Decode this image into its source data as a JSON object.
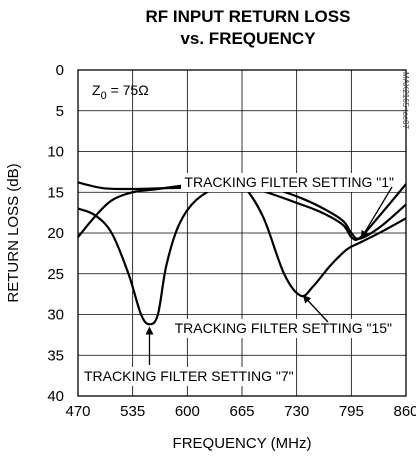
{
  "chart_data": {
    "type": "line",
    "title_line1": "RF INPUT RETURN LOSS",
    "title_line2": "vs. FREQUENCY",
    "xlabel": "FREQUENCY (MHz)",
    "ylabel": "RETURN LOSS (dB)",
    "xlim": [
      470,
      860
    ],
    "ylim": [
      0,
      40
    ],
    "y_inverted": true,
    "xticks": [
      470,
      535,
      600,
      665,
      730,
      795,
      860
    ],
    "yticks": [
      0,
      5,
      10,
      15,
      20,
      25,
      30,
      35,
      40
    ],
    "grid": true,
    "z0_prefix": "Z",
    "z0_sub": "0",
    "z0_suffix": " = 75Ω",
    "side_note": "MAX2165 toc07",
    "series": [
      {
        "name": "TRACKING FILTER SETTING \"1\"",
        "points": [
          [
            470,
            13.8
          ],
          [
            500,
            14.5
          ],
          [
            535,
            14.6
          ],
          [
            570,
            14.5
          ],
          [
            600,
            14.4
          ],
          [
            640,
            13.8
          ],
          [
            665,
            14
          ],
          [
            700,
            15.2
          ],
          [
            730,
            16.3
          ],
          [
            760,
            17.5
          ],
          [
            785,
            19
          ],
          [
            795,
            20.5
          ],
          [
            805,
            20.6
          ],
          [
            830,
            17.7
          ],
          [
            860,
            14
          ]
        ]
      },
      {
        "name": "TRACKING FILTER SETTING \"7\"",
        "points": [
          [
            470,
            17
          ],
          [
            490,
            17.8
          ],
          [
            510,
            20
          ],
          [
            530,
            25
          ],
          [
            545,
            30
          ],
          [
            555,
            31.2
          ],
          [
            565,
            30
          ],
          [
            575,
            24
          ],
          [
            590,
            19
          ],
          [
            610,
            16
          ],
          [
            640,
            14.2
          ],
          [
            665,
            13.9
          ],
          [
            700,
            14.5
          ],
          [
            730,
            15.5
          ],
          [
            760,
            16.9
          ],
          [
            785,
            18.5
          ],
          [
            795,
            20
          ],
          [
            805,
            20.7
          ],
          [
            830,
            19.2
          ],
          [
            860,
            16.5
          ]
        ]
      },
      {
        "name": "TRACKING FILTER SETTING \"15\"",
        "points": [
          [
            470,
            20.5
          ],
          [
            490,
            18
          ],
          [
            510,
            16
          ],
          [
            535,
            15
          ],
          [
            565,
            14.6
          ],
          [
            600,
            14.1
          ],
          [
            625,
            13.8
          ],
          [
            650,
            13.6
          ],
          [
            665,
            14
          ],
          [
            690,
            18
          ],
          [
            715,
            25
          ],
          [
            735,
            27.7
          ],
          [
            750,
            26.5
          ],
          [
            770,
            24
          ],
          [
            790,
            22
          ],
          [
            805,
            21.2
          ],
          [
            830,
            19.9
          ],
          [
            860,
            18.2
          ]
        ]
      }
    ],
    "annotations": [
      {
        "text": "TRACKING FILTER SETTING \"1\"",
        "arrow_to": [
          807,
          20.6
        ]
      },
      {
        "text": "TRACKING FILTER SETTING \"15\"",
        "arrow_to": [
          738,
          27.7
        ]
      },
      {
        "text": "TRACKING FILTER SETTING \"7\"",
        "arrow_to": [
          555,
          31.6
        ]
      }
    ]
  }
}
